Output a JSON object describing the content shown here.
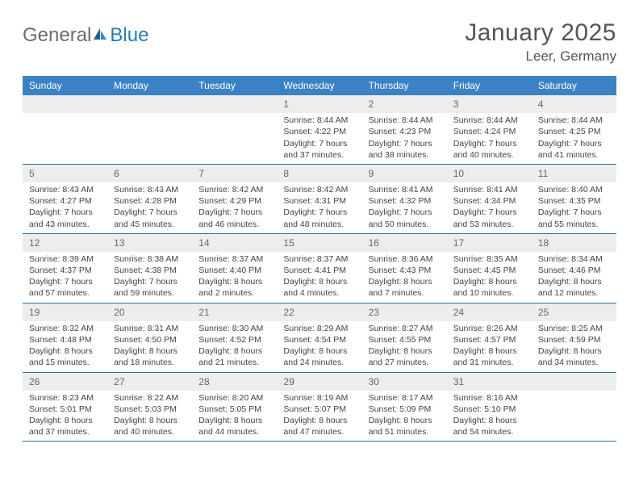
{
  "logo": {
    "text1": "General",
    "text2": "Blue"
  },
  "title": "January 2025",
  "location": "Leer, Germany",
  "colors": {
    "header_bar": "#3b82c4",
    "header_text": "#ffffff",
    "daynum_bg": "#eceded",
    "week_border": "#2a6ca8",
    "body_text": "#444444",
    "title_text": "#555555",
    "logo_gray": "#6b6b6b",
    "logo_blue": "#2a7ab8"
  },
  "dow": [
    "Sunday",
    "Monday",
    "Tuesday",
    "Wednesday",
    "Thursday",
    "Friday",
    "Saturday"
  ],
  "weeks": [
    [
      {
        "n": "",
        "empty": true
      },
      {
        "n": "",
        "empty": true
      },
      {
        "n": "",
        "empty": true
      },
      {
        "n": "1",
        "sr": "Sunrise: 8:44 AM",
        "ss": "Sunset: 4:22 PM",
        "dl1": "Daylight: 7 hours",
        "dl2": "and 37 minutes."
      },
      {
        "n": "2",
        "sr": "Sunrise: 8:44 AM",
        "ss": "Sunset: 4:23 PM",
        "dl1": "Daylight: 7 hours",
        "dl2": "and 38 minutes."
      },
      {
        "n": "3",
        "sr": "Sunrise: 8:44 AM",
        "ss": "Sunset: 4:24 PM",
        "dl1": "Daylight: 7 hours",
        "dl2": "and 40 minutes."
      },
      {
        "n": "4",
        "sr": "Sunrise: 8:44 AM",
        "ss": "Sunset: 4:25 PM",
        "dl1": "Daylight: 7 hours",
        "dl2": "and 41 minutes."
      }
    ],
    [
      {
        "n": "5",
        "sr": "Sunrise: 8:43 AM",
        "ss": "Sunset: 4:27 PM",
        "dl1": "Daylight: 7 hours",
        "dl2": "and 43 minutes."
      },
      {
        "n": "6",
        "sr": "Sunrise: 8:43 AM",
        "ss": "Sunset: 4:28 PM",
        "dl1": "Daylight: 7 hours",
        "dl2": "and 45 minutes."
      },
      {
        "n": "7",
        "sr": "Sunrise: 8:42 AM",
        "ss": "Sunset: 4:29 PM",
        "dl1": "Daylight: 7 hours",
        "dl2": "and 46 minutes."
      },
      {
        "n": "8",
        "sr": "Sunrise: 8:42 AM",
        "ss": "Sunset: 4:31 PM",
        "dl1": "Daylight: 7 hours",
        "dl2": "and 48 minutes."
      },
      {
        "n": "9",
        "sr": "Sunrise: 8:41 AM",
        "ss": "Sunset: 4:32 PM",
        "dl1": "Daylight: 7 hours",
        "dl2": "and 50 minutes."
      },
      {
        "n": "10",
        "sr": "Sunrise: 8:41 AM",
        "ss": "Sunset: 4:34 PM",
        "dl1": "Daylight: 7 hours",
        "dl2": "and 53 minutes."
      },
      {
        "n": "11",
        "sr": "Sunrise: 8:40 AM",
        "ss": "Sunset: 4:35 PM",
        "dl1": "Daylight: 7 hours",
        "dl2": "and 55 minutes."
      }
    ],
    [
      {
        "n": "12",
        "sr": "Sunrise: 8:39 AM",
        "ss": "Sunset: 4:37 PM",
        "dl1": "Daylight: 7 hours",
        "dl2": "and 57 minutes."
      },
      {
        "n": "13",
        "sr": "Sunrise: 8:38 AM",
        "ss": "Sunset: 4:38 PM",
        "dl1": "Daylight: 7 hours",
        "dl2": "and 59 minutes."
      },
      {
        "n": "14",
        "sr": "Sunrise: 8:37 AM",
        "ss": "Sunset: 4:40 PM",
        "dl1": "Daylight: 8 hours",
        "dl2": "and 2 minutes."
      },
      {
        "n": "15",
        "sr": "Sunrise: 8:37 AM",
        "ss": "Sunset: 4:41 PM",
        "dl1": "Daylight: 8 hours",
        "dl2": "and 4 minutes."
      },
      {
        "n": "16",
        "sr": "Sunrise: 8:36 AM",
        "ss": "Sunset: 4:43 PM",
        "dl1": "Daylight: 8 hours",
        "dl2": "and 7 minutes."
      },
      {
        "n": "17",
        "sr": "Sunrise: 8:35 AM",
        "ss": "Sunset: 4:45 PM",
        "dl1": "Daylight: 8 hours",
        "dl2": "and 10 minutes."
      },
      {
        "n": "18",
        "sr": "Sunrise: 8:34 AM",
        "ss": "Sunset: 4:46 PM",
        "dl1": "Daylight: 8 hours",
        "dl2": "and 12 minutes."
      }
    ],
    [
      {
        "n": "19",
        "sr": "Sunrise: 8:32 AM",
        "ss": "Sunset: 4:48 PM",
        "dl1": "Daylight: 8 hours",
        "dl2": "and 15 minutes."
      },
      {
        "n": "20",
        "sr": "Sunrise: 8:31 AM",
        "ss": "Sunset: 4:50 PM",
        "dl1": "Daylight: 8 hours",
        "dl2": "and 18 minutes."
      },
      {
        "n": "21",
        "sr": "Sunrise: 8:30 AM",
        "ss": "Sunset: 4:52 PM",
        "dl1": "Daylight: 8 hours",
        "dl2": "and 21 minutes."
      },
      {
        "n": "22",
        "sr": "Sunrise: 8:29 AM",
        "ss": "Sunset: 4:54 PM",
        "dl1": "Daylight: 8 hours",
        "dl2": "and 24 minutes."
      },
      {
        "n": "23",
        "sr": "Sunrise: 8:27 AM",
        "ss": "Sunset: 4:55 PM",
        "dl1": "Daylight: 8 hours",
        "dl2": "and 27 minutes."
      },
      {
        "n": "24",
        "sr": "Sunrise: 8:26 AM",
        "ss": "Sunset: 4:57 PM",
        "dl1": "Daylight: 8 hours",
        "dl2": "and 31 minutes."
      },
      {
        "n": "25",
        "sr": "Sunrise: 8:25 AM",
        "ss": "Sunset: 4:59 PM",
        "dl1": "Daylight: 8 hours",
        "dl2": "and 34 minutes."
      }
    ],
    [
      {
        "n": "26",
        "sr": "Sunrise: 8:23 AM",
        "ss": "Sunset: 5:01 PM",
        "dl1": "Daylight: 8 hours",
        "dl2": "and 37 minutes."
      },
      {
        "n": "27",
        "sr": "Sunrise: 8:22 AM",
        "ss": "Sunset: 5:03 PM",
        "dl1": "Daylight: 8 hours",
        "dl2": "and 40 minutes."
      },
      {
        "n": "28",
        "sr": "Sunrise: 8:20 AM",
        "ss": "Sunset: 5:05 PM",
        "dl1": "Daylight: 8 hours",
        "dl2": "and 44 minutes."
      },
      {
        "n": "29",
        "sr": "Sunrise: 8:19 AM",
        "ss": "Sunset: 5:07 PM",
        "dl1": "Daylight: 8 hours",
        "dl2": "and 47 minutes."
      },
      {
        "n": "30",
        "sr": "Sunrise: 8:17 AM",
        "ss": "Sunset: 5:09 PM",
        "dl1": "Daylight: 8 hours",
        "dl2": "and 51 minutes."
      },
      {
        "n": "31",
        "sr": "Sunrise: 8:16 AM",
        "ss": "Sunset: 5:10 PM",
        "dl1": "Daylight: 8 hours",
        "dl2": "and 54 minutes."
      },
      {
        "n": "",
        "empty": true
      }
    ]
  ]
}
